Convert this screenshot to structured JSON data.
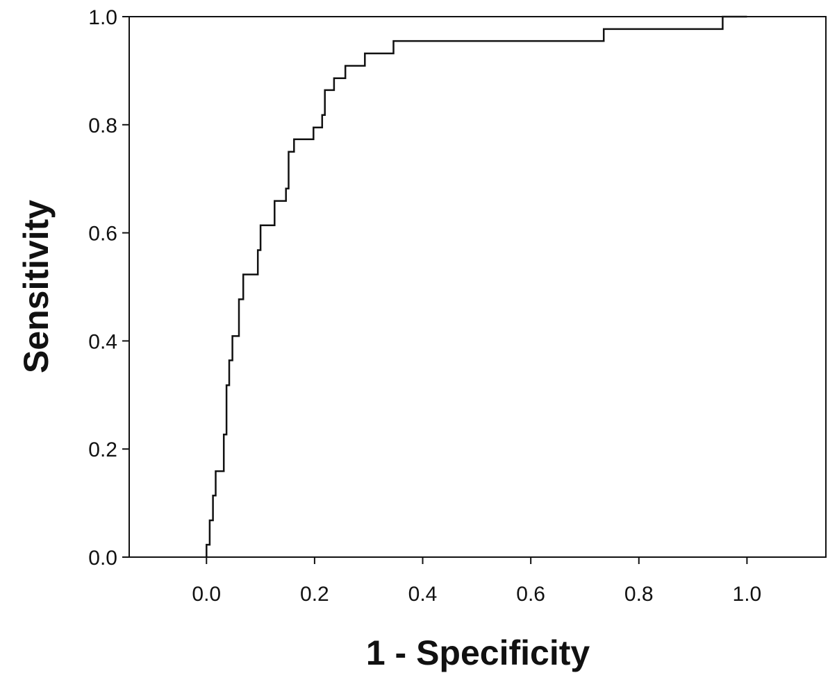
{
  "chart_data": {
    "type": "line",
    "title": "",
    "xlabel": "1 - Specificity",
    "ylabel": "Sensitivity",
    "xlim": [
      -0.143,
      1.146
    ],
    "ylim": [
      0,
      1
    ],
    "grid": false,
    "legend": "none",
    "x_ticks": [
      {
        "value": 0.0,
        "label": "0.0"
      },
      {
        "value": 0.2,
        "label": "0.2"
      },
      {
        "value": 0.4,
        "label": "0.4"
      },
      {
        "value": 0.6,
        "label": "0.6"
      },
      {
        "value": 0.8,
        "label": "0.8"
      },
      {
        "value": 1.0,
        "label": "1.0"
      }
    ],
    "y_ticks": [
      {
        "value": 0.0,
        "label": "0.0"
      },
      {
        "value": 0.2,
        "label": "0.2"
      },
      {
        "value": 0.4,
        "label": "0.4"
      },
      {
        "value": 0.6,
        "label": "0.6"
      },
      {
        "value": 0.8,
        "label": "0.8"
      },
      {
        "value": 1.0,
        "label": "1.0"
      }
    ],
    "series": [
      {
        "color": "#111111",
        "points": [
          [
            0.0,
            0.0
          ],
          [
            0.0,
            0.023
          ],
          [
            0.006,
            0.023
          ],
          [
            0.006,
            0.068
          ],
          [
            0.012,
            0.068
          ],
          [
            0.012,
            0.114
          ],
          [
            0.017,
            0.114
          ],
          [
            0.017,
            0.159
          ],
          [
            0.032,
            0.159
          ],
          [
            0.032,
            0.227
          ],
          [
            0.037,
            0.227
          ],
          [
            0.037,
            0.318
          ],
          [
            0.042,
            0.318
          ],
          [
            0.042,
            0.364
          ],
          [
            0.048,
            0.364
          ],
          [
            0.048,
            0.409
          ],
          [
            0.06,
            0.409
          ],
          [
            0.06,
            0.477
          ],
          [
            0.068,
            0.477
          ],
          [
            0.068,
            0.523
          ],
          [
            0.095,
            0.523
          ],
          [
            0.095,
            0.568
          ],
          [
            0.1,
            0.568
          ],
          [
            0.1,
            0.614
          ],
          [
            0.126,
            0.614
          ],
          [
            0.126,
            0.659
          ],
          [
            0.147,
            0.659
          ],
          [
            0.147,
            0.682
          ],
          [
            0.152,
            0.682
          ],
          [
            0.152,
            0.75
          ],
          [
            0.162,
            0.75
          ],
          [
            0.162,
            0.773
          ],
          [
            0.198,
            0.773
          ],
          [
            0.198,
            0.795
          ],
          [
            0.214,
            0.795
          ],
          [
            0.214,
            0.818
          ],
          [
            0.219,
            0.818
          ],
          [
            0.219,
            0.864
          ],
          [
            0.236,
            0.864
          ],
          [
            0.236,
            0.886
          ],
          [
            0.257,
            0.886
          ],
          [
            0.257,
            0.909
          ],
          [
            0.293,
            0.909
          ],
          [
            0.293,
            0.932
          ],
          [
            0.346,
            0.932
          ],
          [
            0.346,
            0.955
          ],
          [
            0.735,
            0.955
          ],
          [
            0.735,
            0.977
          ],
          [
            0.955,
            0.977
          ],
          [
            0.955,
            1.0
          ],
          [
            1.0,
            1.0
          ]
        ]
      }
    ]
  }
}
